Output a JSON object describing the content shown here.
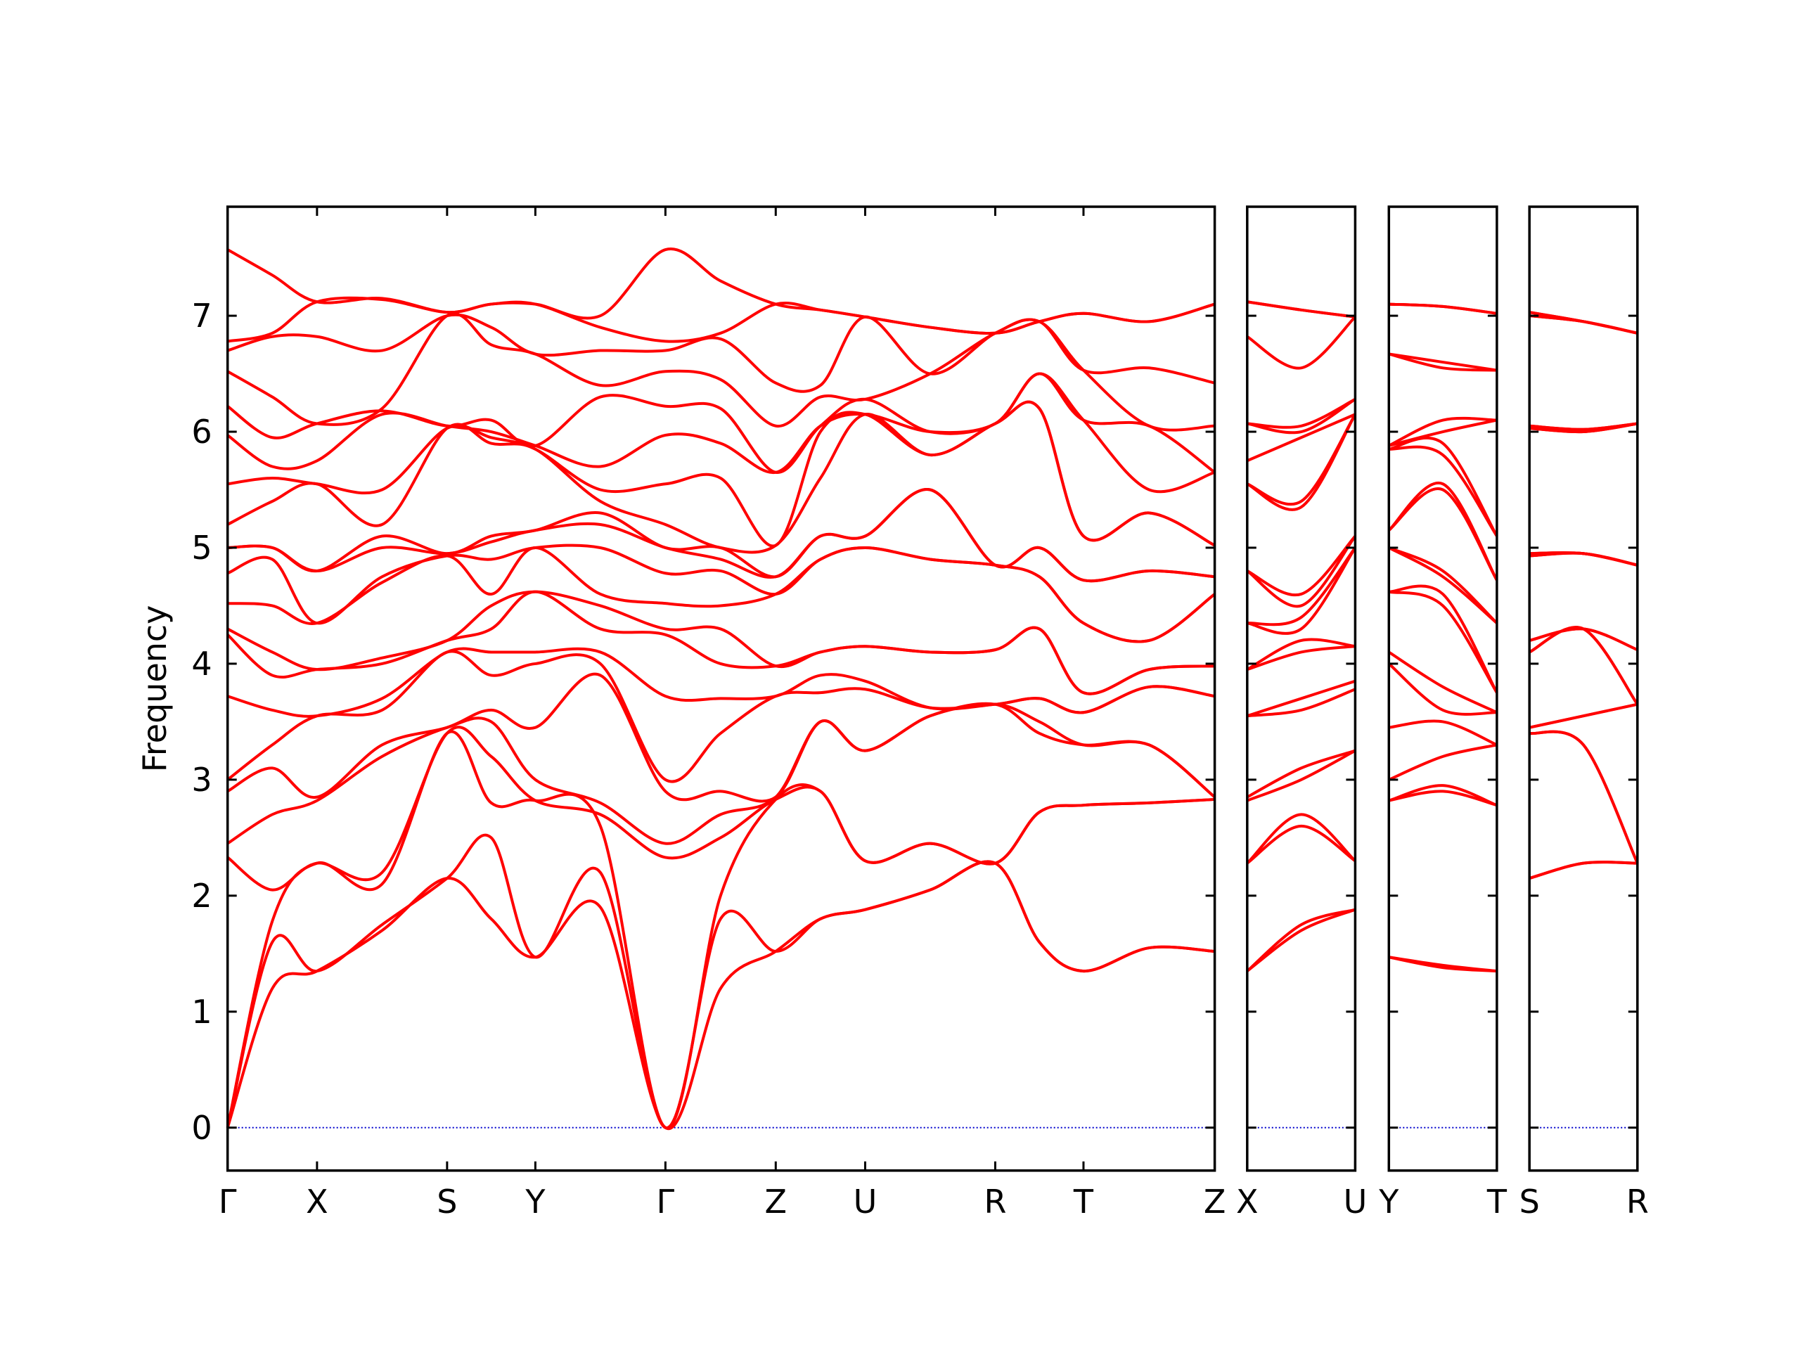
{
  "chart_data": [
    {
      "type": "line",
      "ylabel": "Frequency",
      "color": "#ff0000",
      "x": [
        0,
        0.385,
        0.77,
        1.33,
        1.89,
        2.27,
        2.65,
        3.21,
        3.77,
        4.245,
        4.72,
        5.105,
        5.49,
        6.05,
        6.61,
        6.99,
        7.37,
        7.935,
        8.5
      ],
      "xlim": [
        0,
        8.5
      ],
      "xticks": [
        {
          "value": 0,
          "label": "Γ"
        },
        {
          "value": 0.77,
          "label": "X"
        },
        {
          "value": 1.89,
          "label": "S"
        },
        {
          "value": 2.65,
          "label": "Y"
        },
        {
          "value": 3.77,
          "label": "Γ"
        },
        {
          "value": 4.72,
          "label": "Z"
        },
        {
          "value": 5.49,
          "label": "U"
        },
        {
          "value": 6.61,
          "label": "R"
        },
        {
          "value": 7.37,
          "label": "T"
        },
        {
          "value": 8.5,
          "label": "Z"
        }
      ],
      "ylim": [
        -0.37,
        7.94
      ],
      "yticks": [
        0,
        1,
        2,
        3,
        4,
        5,
        6,
        7
      ],
      "series": [
        {
          "values": [
            0,
            1.2,
            1.35,
            1.7,
            2.15,
            1.8,
            1.47,
            1.9,
            0,
            1.2,
            1.52,
            1.8,
            1.88,
            2.05,
            2.28,
            1.6,
            1.35,
            1.55,
            1.52
          ]
        },
        {
          "values": [
            0,
            1.6,
            1.35,
            1.75,
            2.15,
            2.5,
            1.47,
            2.2,
            0,
            1.8,
            1.52,
            1.8,
            1.88,
            2.05,
            2.28,
            1.6,
            1.35,
            1.55,
            1.52
          ]
        },
        {
          "values": [
            0,
            1.78,
            2.28,
            2.1,
            3.4,
            2.8,
            2.82,
            2.6,
            0,
            2.0,
            2.83,
            2.9,
            2.3,
            2.45,
            2.28,
            2.72,
            2.78,
            2.8,
            2.83
          ]
        },
        {
          "values": [
            2.33,
            2.05,
            2.28,
            2.2,
            3.4,
            3.2,
            2.82,
            2.7,
            2.33,
            2.5,
            2.83,
            2.9,
            2.3,
            2.45,
            2.28,
            2.72,
            2.78,
            2.8,
            2.83
          ]
        },
        {
          "values": [
            2.45,
            2.7,
            2.82,
            3.2,
            3.45,
            3.5,
            3.0,
            2.8,
            2.45,
            2.7,
            2.85,
            3.5,
            3.25,
            3.55,
            3.65,
            3.4,
            3.3,
            3.3,
            2.85
          ]
        },
        {
          "values": [
            2.9,
            3.1,
            2.85,
            3.3,
            3.45,
            3.6,
            3.45,
            3.9,
            2.9,
            2.9,
            2.85,
            3.5,
            3.25,
            3.55,
            3.65,
            3.5,
            3.3,
            3.3,
            2.85
          ]
        },
        {
          "values": [
            3.0,
            3.3,
            3.55,
            3.6,
            4.1,
            3.9,
            4.0,
            4.0,
            3.0,
            3.4,
            3.72,
            3.75,
            3.78,
            3.62,
            3.65,
            3.7,
            3.58,
            3.8,
            3.72
          ]
        },
        {
          "values": [
            3.72,
            3.6,
            3.55,
            3.7,
            4.1,
            4.1,
            4.1,
            4.1,
            3.72,
            3.7,
            3.72,
            3.9,
            3.85,
            3.62,
            3.65,
            3.7,
            3.58,
            3.8,
            3.72
          ]
        },
        {
          "values": [
            4.25,
            3.9,
            3.95,
            4.0,
            4.2,
            4.3,
            4.62,
            4.3,
            4.25,
            4.0,
            3.98,
            4.1,
            4.15,
            4.1,
            4.12,
            4.3,
            3.75,
            3.95,
            3.98
          ]
        },
        {
          "values": [
            4.3,
            4.1,
            3.95,
            4.05,
            4.2,
            4.5,
            4.62,
            4.5,
            4.3,
            4.3,
            3.98,
            4.1,
            4.15,
            4.1,
            4.12,
            4.3,
            3.75,
            3.95,
            3.98
          ]
        },
        {
          "values": [
            4.52,
            4.5,
            4.35,
            4.7,
            4.93,
            4.6,
            5.0,
            4.6,
            4.52,
            4.5,
            4.6,
            4.9,
            5.0,
            4.9,
            4.85,
            4.75,
            4.35,
            4.2,
            4.6
          ]
        },
        {
          "values": [
            4.78,
            4.9,
            4.35,
            4.75,
            4.93,
            4.9,
            5.0,
            5.0,
            4.78,
            4.8,
            4.6,
            4.9,
            5.0,
            4.9,
            4.85,
            4.75,
            4.35,
            4.2,
            4.6
          ]
        },
        {
          "values": [
            5.0,
            5.0,
            4.8,
            5.0,
            4.95,
            5.05,
            5.15,
            5.2,
            5.0,
            4.9,
            4.75,
            5.1,
            5.1,
            5.5,
            4.85,
            5.0,
            4.72,
            4.8,
            4.75
          ]
        },
        {
          "values": [
            5.0,
            5.0,
            4.8,
            5.1,
            4.95,
            5.1,
            5.15,
            5.3,
            5.0,
            5.0,
            4.75,
            5.1,
            5.1,
            5.5,
            4.85,
            5.0,
            4.72,
            4.8,
            4.75
          ]
        },
        {
          "values": [
            5.2,
            5.4,
            5.55,
            5.2,
            6.03,
            5.9,
            5.85,
            5.4,
            5.2,
            5.0,
            5.02,
            5.6,
            6.15,
            5.8,
            6.07,
            6.2,
            5.1,
            5.3,
            5.02
          ]
        },
        {
          "values": [
            5.55,
            5.6,
            5.55,
            5.5,
            6.03,
            5.95,
            5.85,
            5.5,
            5.55,
            5.6,
            5.02,
            6.0,
            6.15,
            5.8,
            6.07,
            6.2,
            5.1,
            5.3,
            5.02
          ]
        },
        {
          "values": [
            5.97,
            5.7,
            5.75,
            6.15,
            6.05,
            6.0,
            5.88,
            5.7,
            5.97,
            5.9,
            5.65,
            6.05,
            6.15,
            6.0,
            6.07,
            6.5,
            6.1,
            5.5,
            5.65
          ]
        },
        {
          "values": [
            6.22,
            5.95,
            6.07,
            6.18,
            6.05,
            6.1,
            5.88,
            6.3,
            6.22,
            6.2,
            5.65,
            6.05,
            6.28,
            6.0,
            6.07,
            6.5,
            6.1,
            6.05,
            5.65
          ]
        },
        {
          "values": [
            6.52,
            6.3,
            6.07,
            6.2,
            7.0,
            6.75,
            6.67,
            6.4,
            6.52,
            6.45,
            6.05,
            6.3,
            6.28,
            6.5,
            6.85,
            6.95,
            6.53,
            6.05,
            6.05
          ]
        },
        {
          "values": [
            6.7,
            6.82,
            6.82,
            6.7,
            7.0,
            6.9,
            6.67,
            6.7,
            6.7,
            6.8,
            6.42,
            6.4,
            6.99,
            6.5,
            6.85,
            6.95,
            6.53,
            6.55,
            6.42
          ]
        },
        {
          "values": [
            6.78,
            6.85,
            7.12,
            7.14,
            7.03,
            7.1,
            7.1,
            6.9,
            6.78,
            6.85,
            7.1,
            7.05,
            6.99,
            6.9,
            6.85,
            6.95,
            7.02,
            6.95,
            7.1
          ]
        },
        {
          "values": [
            7.57,
            7.35,
            7.12,
            7.15,
            7.03,
            7.1,
            7.1,
            7.0,
            7.57,
            7.3,
            7.1,
            7.05,
            6.99,
            6.9,
            6.85,
            6.95,
            7.02,
            6.95,
            7.1
          ]
        }
      ]
    },
    {
      "type": "line",
      "color": "#ff0000",
      "x": [
        0,
        0.465,
        0.93
      ],
      "xlim": [
        0,
        0.93
      ],
      "xticks": [
        {
          "value": 0,
          "label": "X"
        },
        {
          "value": 0.93,
          "label": "U"
        }
      ],
      "ylim": [
        -0.37,
        7.94
      ],
      "yticks": [
        0,
        1,
        2,
        3,
        4,
        5,
        6,
        7
      ],
      "series": [
        {
          "values": [
            1.35,
            1.7,
            1.88
          ]
        },
        {
          "values": [
            1.35,
            1.75,
            1.88
          ]
        },
        {
          "values": [
            2.28,
            2.6,
            2.3
          ]
        },
        {
          "values": [
            2.28,
            2.7,
            2.3
          ]
        },
        {
          "values": [
            2.82,
            3.0,
            3.25
          ]
        },
        {
          "values": [
            2.85,
            3.1,
            3.25
          ]
        },
        {
          "values": [
            3.55,
            3.6,
            3.78
          ]
        },
        {
          "values": [
            3.55,
            3.7,
            3.85
          ]
        },
        {
          "values": [
            3.95,
            4.1,
            4.15
          ]
        },
        {
          "values": [
            3.95,
            4.2,
            4.15
          ]
        },
        {
          "values": [
            4.35,
            4.3,
            5.0
          ]
        },
        {
          "values": [
            4.35,
            4.4,
            5.0
          ]
        },
        {
          "values": [
            4.8,
            4.5,
            5.1
          ]
        },
        {
          "values": [
            4.8,
            4.6,
            5.1
          ]
        },
        {
          "values": [
            5.55,
            5.35,
            6.15
          ]
        },
        {
          "values": [
            5.55,
            5.4,
            6.15
          ]
        },
        {
          "values": [
            5.75,
            5.95,
            6.15
          ]
        },
        {
          "values": [
            6.07,
            6.0,
            6.28
          ]
        },
        {
          "values": [
            6.07,
            6.05,
            6.28
          ]
        },
        {
          "values": [
            6.82,
            6.55,
            6.99
          ]
        },
        {
          "values": [
            7.12,
            7.05,
            6.99
          ]
        },
        {
          "values": [
            7.12,
            7.05,
            6.99
          ]
        }
      ]
    },
    {
      "type": "line",
      "color": "#ff0000",
      "x": [
        0,
        0.465,
        0.93
      ],
      "xlim": [
        0,
        0.93
      ],
      "xticks": [
        {
          "value": 0,
          "label": "Y"
        },
        {
          "value": 0.93,
          "label": "T"
        }
      ],
      "ylim": [
        -0.37,
        7.94
      ],
      "yticks": [
        0,
        1,
        2,
        3,
        4,
        5,
        6,
        7
      ],
      "series": [
        {
          "values": [
            1.47,
            1.38,
            1.35
          ]
        },
        {
          "values": [
            1.47,
            1.4,
            1.35
          ]
        },
        {
          "values": [
            2.82,
            2.9,
            2.78
          ]
        },
        {
          "values": [
            2.82,
            2.95,
            2.78
          ]
        },
        {
          "values": [
            3.0,
            3.2,
            3.3
          ]
        },
        {
          "values": [
            3.45,
            3.5,
            3.3
          ]
        },
        {
          "values": [
            4.0,
            3.6,
            3.58
          ]
        },
        {
          "values": [
            4.1,
            3.8,
            3.58
          ]
        },
        {
          "values": [
            4.62,
            4.5,
            3.75
          ]
        },
        {
          "values": [
            4.62,
            4.6,
            3.75
          ]
        },
        {
          "values": [
            5.0,
            4.75,
            4.35
          ]
        },
        {
          "values": [
            5.0,
            4.8,
            4.35
          ]
        },
        {
          "values": [
            5.15,
            5.5,
            4.72
          ]
        },
        {
          "values": [
            5.15,
            5.55,
            4.72
          ]
        },
        {
          "values": [
            5.85,
            5.8,
            5.1
          ]
        },
        {
          "values": [
            5.85,
            5.9,
            5.1
          ]
        },
        {
          "values": [
            5.88,
            6.0,
            6.1
          ]
        },
        {
          "values": [
            5.88,
            6.1,
            6.1
          ]
        },
        {
          "values": [
            6.67,
            6.55,
            6.53
          ]
        },
        {
          "values": [
            6.67,
            6.6,
            6.53
          ]
        },
        {
          "values": [
            7.1,
            7.08,
            7.02
          ]
        },
        {
          "values": [
            7.1,
            7.08,
            7.02
          ]
        }
      ]
    },
    {
      "type": "line",
      "color": "#ff0000",
      "x": [
        0,
        0.465,
        0.93
      ],
      "xlim": [
        0,
        0.93
      ],
      "xticks": [
        {
          "value": 0,
          "label": "S"
        },
        {
          "value": 0.93,
          "label": "R"
        }
      ],
      "ylim": [
        -0.37,
        7.94
      ],
      "yticks": [
        0,
        1,
        2,
        3,
        4,
        5,
        6,
        7
      ],
      "series": [
        {
          "values": [
            2.15,
            2.28,
            2.28
          ]
        },
        {
          "values": [
            2.15,
            2.28,
            2.28
          ]
        },
        {
          "values": [
            3.4,
            3.3,
            2.28
          ]
        },
        {
          "values": [
            3.4,
            3.3,
            2.28
          ]
        },
        {
          "values": [
            3.45,
            3.55,
            3.65
          ]
        },
        {
          "values": [
            3.45,
            3.55,
            3.65
          ]
        },
        {
          "values": [
            4.1,
            4.3,
            3.65
          ]
        },
        {
          "values": [
            4.1,
            4.3,
            3.65
          ]
        },
        {
          "values": [
            4.2,
            4.3,
            4.12
          ]
        },
        {
          "values": [
            4.2,
            4.3,
            4.12
          ]
        },
        {
          "values": [
            4.93,
            4.95,
            4.85
          ]
        },
        {
          "values": [
            4.93,
            4.95,
            4.85
          ]
        },
        {
          "values": [
            4.95,
            4.95,
            4.85
          ]
        },
        {
          "values": [
            4.95,
            4.95,
            4.85
          ]
        },
        {
          "values": [
            6.03,
            6.0,
            6.07
          ]
        },
        {
          "values": [
            6.03,
            6.0,
            6.07
          ]
        },
        {
          "values": [
            6.05,
            6.02,
            6.07
          ]
        },
        {
          "values": [
            6.05,
            6.02,
            6.07
          ]
        },
        {
          "values": [
            7.0,
            6.95,
            6.85
          ]
        },
        {
          "values": [
            7.0,
            6.95,
            6.85
          ]
        },
        {
          "values": [
            7.03,
            6.95,
            6.85
          ]
        },
        {
          "values": [
            7.03,
            6.95,
            6.85
          ]
        }
      ]
    }
  ]
}
